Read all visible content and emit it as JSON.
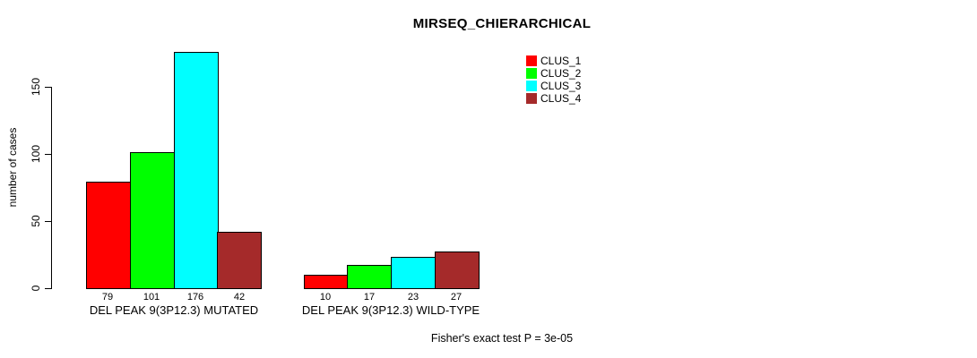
{
  "chart_data": {
    "type": "bar",
    "title": "MIRSEQ_CHIERARCHICAL",
    "ylabel": "number of cases",
    "xlabel": "",
    "categories": [
      "DEL PEAK 9(3P12.3) MUTATED",
      "DEL PEAK 9(3P12.3) WILD-TYPE"
    ],
    "series": [
      {
        "name": "CLUS_1",
        "color": "#ff0000",
        "values": [
          79,
          10
        ]
      },
      {
        "name": "CLUS_2",
        "color": "#00ff00",
        "values": [
          101,
          17
        ]
      },
      {
        "name": "CLUS_3",
        "color": "#00ffff",
        "values": [
          176,
          23
        ]
      },
      {
        "name": "CLUS_4",
        "color": "#a52a2a",
        "values": [
          42,
          27
        ]
      }
    ],
    "yticks": [
      0,
      50,
      100,
      150
    ],
    "ylim": [
      0,
      185
    ],
    "grid": false,
    "show_bar_values": true,
    "legend": {
      "position": "top-right"
    },
    "annotation": "Fisher's exact test P = 3e-05"
  }
}
